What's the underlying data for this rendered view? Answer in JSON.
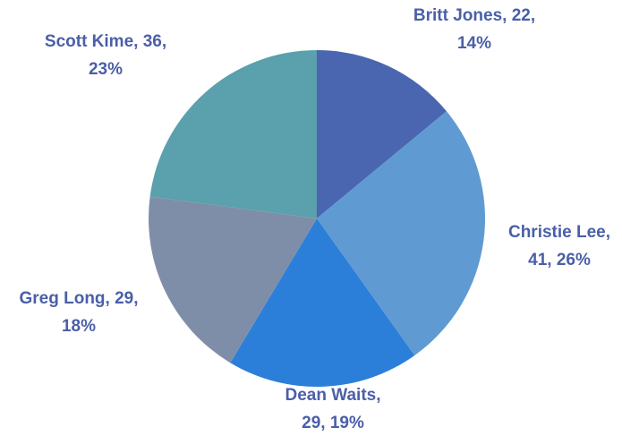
{
  "chart_data": {
    "type": "pie",
    "title": "",
    "label_color": "#4a5fa8",
    "slices": [
      {
        "name": "Britt Jones",
        "value": 22,
        "percent": "14%",
        "color": "#4a66b0",
        "label_lines": [
          "Britt Jones, 22,",
          "14%"
        ]
      },
      {
        "name": "Christie Lee",
        "value": 41,
        "percent": "26%",
        "color": "#5f9bd2",
        "label_lines": [
          "Christie Lee,",
          "41, 26%"
        ]
      },
      {
        "name": "Dean Waits",
        "value": 29,
        "percent": "19%",
        "color": "#2b7fd8",
        "label_lines": [
          "Dean Waits,",
          "29, 19%"
        ]
      },
      {
        "name": "Greg Long",
        "value": 29,
        "percent": "18%",
        "color": "#7f8ea8",
        "label_lines": [
          "Greg Long, 29,",
          "18%"
        ]
      },
      {
        "name": "Scott Kime",
        "value": 36,
        "percent": "23%",
        "color": "#5aa0ad",
        "label_lines": [
          "Scott Kime, 36,",
          "23%"
        ]
      }
    ]
  }
}
